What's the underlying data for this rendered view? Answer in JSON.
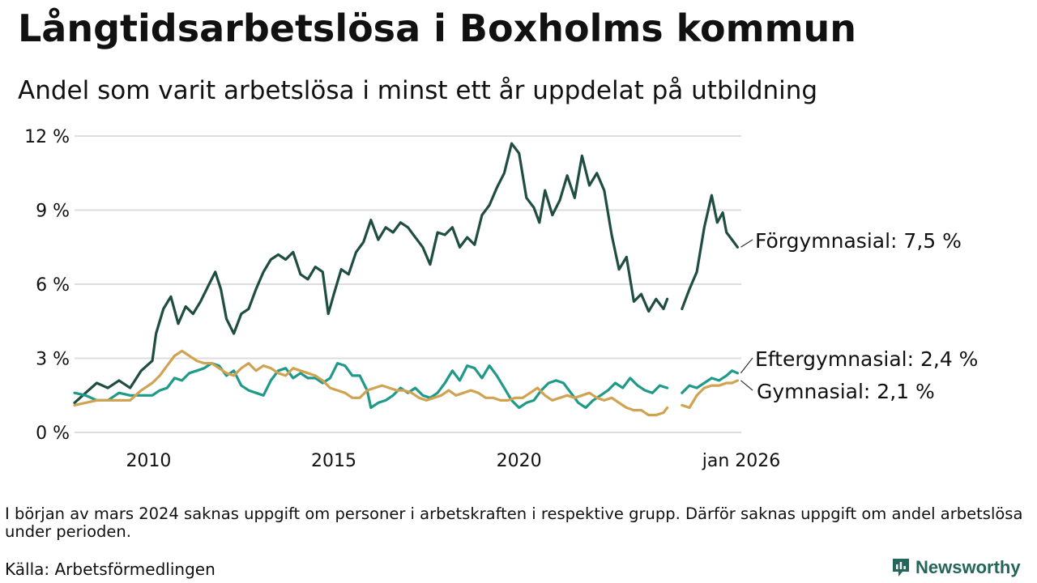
{
  "title": "Långtidsarbetslösa i Boxholms kommun",
  "subtitle": "Andel som varit arbetslösa i minst ett år uppdelat på utbildning",
  "note": "I början av mars 2024 saknas uppgift om personer i arbetskraften i respektive grupp. Därför saknas uppgift om andel arbetslösa under perioden.",
  "source": "Källa: Arbetsförmedlingen",
  "brand": "Newsworthy",
  "colors": {
    "forgymnasial": "#1f4d42",
    "eftergymnasial": "#1f9a8a",
    "gymnasial": "#d0a352",
    "grid": "#dddddd",
    "brand": "#24665a"
  },
  "chart_data": {
    "type": "line",
    "title": "Långtidsarbetslösa i Boxholms kommun",
    "xlabel": "",
    "ylabel": "",
    "x_unit": "year",
    "xlim": [
      2008.0,
      2026.0
    ],
    "ylim": [
      0,
      12
    ],
    "y_ticks": [
      0,
      3,
      6,
      9,
      12
    ],
    "y_tick_labels": [
      "0 %",
      "3 %",
      "6 %",
      "9 %",
      "12 %"
    ],
    "x_ticks": [
      2010,
      2015,
      2020,
      2026.0
    ],
    "x_tick_labels": [
      "2010",
      "2015",
      "2020",
      "jan 2026"
    ],
    "grid": true,
    "gap": [
      2024.15,
      2024.4
    ],
    "series": [
      {
        "name": "Förgymnasial",
        "label": "Förgymnasial: 7,5 %",
        "color": "#1f4d42",
        "points": [
          [
            2008.0,
            1.2
          ],
          [
            2008.3,
            1.6
          ],
          [
            2008.6,
            2.0
          ],
          [
            2008.9,
            1.8
          ],
          [
            2009.2,
            2.1
          ],
          [
            2009.5,
            1.8
          ],
          [
            2009.8,
            2.5
          ],
          [
            2010.1,
            2.9
          ],
          [
            2010.2,
            4.0
          ],
          [
            2010.4,
            5.0
          ],
          [
            2010.6,
            5.5
          ],
          [
            2010.8,
            4.4
          ],
          [
            2011.0,
            5.1
          ],
          [
            2011.2,
            4.8
          ],
          [
            2011.4,
            5.3
          ],
          [
            2011.6,
            5.9
          ],
          [
            2011.8,
            6.5
          ],
          [
            2011.95,
            5.8
          ],
          [
            2012.1,
            4.6
          ],
          [
            2012.3,
            4.0
          ],
          [
            2012.5,
            4.8
          ],
          [
            2012.7,
            5.0
          ],
          [
            2012.9,
            5.8
          ],
          [
            2013.1,
            6.5
          ],
          [
            2013.3,
            7.0
          ],
          [
            2013.5,
            7.2
          ],
          [
            2013.7,
            7.0
          ],
          [
            2013.9,
            7.3
          ],
          [
            2014.1,
            6.4
          ],
          [
            2014.3,
            6.2
          ],
          [
            2014.5,
            6.7
          ],
          [
            2014.7,
            6.5
          ],
          [
            2014.85,
            4.8
          ],
          [
            2015.0,
            5.6
          ],
          [
            2015.2,
            6.6
          ],
          [
            2015.4,
            6.4
          ],
          [
            2015.6,
            7.3
          ],
          [
            2015.8,
            7.7
          ],
          [
            2016.0,
            8.6
          ],
          [
            2016.2,
            7.8
          ],
          [
            2016.4,
            8.3
          ],
          [
            2016.6,
            8.1
          ],
          [
            2016.8,
            8.5
          ],
          [
            2017.0,
            8.3
          ],
          [
            2017.2,
            7.9
          ],
          [
            2017.4,
            7.5
          ],
          [
            2017.6,
            6.8
          ],
          [
            2017.8,
            8.1
          ],
          [
            2018.0,
            8.0
          ],
          [
            2018.2,
            8.3
          ],
          [
            2018.4,
            7.5
          ],
          [
            2018.6,
            7.9
          ],
          [
            2018.8,
            7.6
          ],
          [
            2019.0,
            8.8
          ],
          [
            2019.2,
            9.2
          ],
          [
            2019.4,
            9.9
          ],
          [
            2019.6,
            10.5
          ],
          [
            2019.8,
            11.7
          ],
          [
            2020.0,
            11.3
          ],
          [
            2020.2,
            9.5
          ],
          [
            2020.4,
            9.1
          ],
          [
            2020.55,
            8.5
          ],
          [
            2020.7,
            9.8
          ],
          [
            2020.9,
            8.8
          ],
          [
            2021.1,
            9.4
          ],
          [
            2021.3,
            10.4
          ],
          [
            2021.5,
            9.5
          ],
          [
            2021.7,
            11.2
          ],
          [
            2021.9,
            10.0
          ],
          [
            2022.1,
            10.5
          ],
          [
            2022.3,
            9.8
          ],
          [
            2022.5,
            8.0
          ],
          [
            2022.7,
            6.6
          ],
          [
            2022.9,
            7.1
          ],
          [
            2023.1,
            5.3
          ],
          [
            2023.3,
            5.6
          ],
          [
            2023.5,
            4.9
          ],
          [
            2023.7,
            5.4
          ],
          [
            2023.9,
            5.0
          ],
          [
            2024.0,
            5.4
          ],
          [
            2024.4,
            5.0
          ],
          [
            2024.6,
            5.8
          ],
          [
            2024.8,
            6.5
          ],
          [
            2025.0,
            8.3
          ],
          [
            2025.2,
            9.6
          ],
          [
            2025.35,
            8.5
          ],
          [
            2025.5,
            8.9
          ],
          [
            2025.6,
            8.1
          ],
          [
            2025.75,
            7.8
          ],
          [
            2025.9,
            7.5
          ]
        ]
      },
      {
        "name": "Eftergymnasial",
        "label": "Eftergymnasial: 2,4 %",
        "color": "#1f9a8a",
        "points": [
          [
            2008.0,
            1.6
          ],
          [
            2008.3,
            1.5
          ],
          [
            2008.6,
            1.3
          ],
          [
            2008.9,
            1.3
          ],
          [
            2009.2,
            1.6
          ],
          [
            2009.5,
            1.5
          ],
          [
            2009.8,
            1.5
          ],
          [
            2010.1,
            1.5
          ],
          [
            2010.3,
            1.7
          ],
          [
            2010.5,
            1.8
          ],
          [
            2010.7,
            2.2
          ],
          [
            2010.9,
            2.1
          ],
          [
            2011.1,
            2.4
          ],
          [
            2011.3,
            2.5
          ],
          [
            2011.5,
            2.6
          ],
          [
            2011.7,
            2.8
          ],
          [
            2011.9,
            2.7
          ],
          [
            2012.1,
            2.3
          ],
          [
            2012.3,
            2.5
          ],
          [
            2012.5,
            1.9
          ],
          [
            2012.7,
            1.7
          ],
          [
            2012.9,
            1.6
          ],
          [
            2013.1,
            1.5
          ],
          [
            2013.3,
            2.1
          ],
          [
            2013.5,
            2.5
          ],
          [
            2013.7,
            2.6
          ],
          [
            2013.9,
            2.2
          ],
          [
            2014.1,
            2.4
          ],
          [
            2014.3,
            2.2
          ],
          [
            2014.5,
            2.2
          ],
          [
            2014.7,
            2.0
          ],
          [
            2014.9,
            2.2
          ],
          [
            2015.1,
            2.8
          ],
          [
            2015.3,
            2.7
          ],
          [
            2015.5,
            2.3
          ],
          [
            2015.7,
            2.3
          ],
          [
            2015.9,
            1.7
          ],
          [
            2016.0,
            1.0
          ],
          [
            2016.2,
            1.2
          ],
          [
            2016.4,
            1.3
          ],
          [
            2016.6,
            1.5
          ],
          [
            2016.8,
            1.8
          ],
          [
            2017.0,
            1.6
          ],
          [
            2017.2,
            1.8
          ],
          [
            2017.4,
            1.5
          ],
          [
            2017.6,
            1.4
          ],
          [
            2017.8,
            1.6
          ],
          [
            2018.0,
            2.0
          ],
          [
            2018.2,
            2.5
          ],
          [
            2018.4,
            2.1
          ],
          [
            2018.6,
            2.7
          ],
          [
            2018.8,
            2.6
          ],
          [
            2019.0,
            2.2
          ],
          [
            2019.2,
            2.7
          ],
          [
            2019.4,
            2.3
          ],
          [
            2019.6,
            1.8
          ],
          [
            2019.8,
            1.3
          ],
          [
            2020.0,
            1.0
          ],
          [
            2020.2,
            1.2
          ],
          [
            2020.4,
            1.3
          ],
          [
            2020.6,
            1.7
          ],
          [
            2020.8,
            2.0
          ],
          [
            2021.0,
            2.1
          ],
          [
            2021.2,
            2.0
          ],
          [
            2021.4,
            1.6
          ],
          [
            2021.6,
            1.2
          ],
          [
            2021.8,
            1.0
          ],
          [
            2022.0,
            1.3
          ],
          [
            2022.2,
            1.5
          ],
          [
            2022.4,
            1.7
          ],
          [
            2022.6,
            2.0
          ],
          [
            2022.8,
            1.8
          ],
          [
            2023.0,
            2.2
          ],
          [
            2023.2,
            1.9
          ],
          [
            2023.4,
            1.7
          ],
          [
            2023.6,
            1.6
          ],
          [
            2023.8,
            1.9
          ],
          [
            2024.0,
            1.8
          ],
          [
            2024.4,
            1.6
          ],
          [
            2024.6,
            1.9
          ],
          [
            2024.8,
            1.8
          ],
          [
            2025.0,
            2.0
          ],
          [
            2025.2,
            2.2
          ],
          [
            2025.4,
            2.1
          ],
          [
            2025.6,
            2.3
          ],
          [
            2025.75,
            2.5
          ],
          [
            2025.9,
            2.4
          ]
        ]
      },
      {
        "name": "Gymnasial",
        "label": "Gymnasial: 2,1 %",
        "color": "#d0a352",
        "points": [
          [
            2008.0,
            1.1
          ],
          [
            2008.3,
            1.2
          ],
          [
            2008.6,
            1.3
          ],
          [
            2008.9,
            1.3
          ],
          [
            2009.2,
            1.3
          ],
          [
            2009.5,
            1.3
          ],
          [
            2009.8,
            1.7
          ],
          [
            2010.1,
            2.0
          ],
          [
            2010.3,
            2.3
          ],
          [
            2010.5,
            2.7
          ],
          [
            2010.7,
            3.1
          ],
          [
            2010.9,
            3.3
          ],
          [
            2011.1,
            3.1
          ],
          [
            2011.3,
            2.9
          ],
          [
            2011.5,
            2.8
          ],
          [
            2011.7,
            2.8
          ],
          [
            2011.9,
            2.6
          ],
          [
            2012.1,
            2.4
          ],
          [
            2012.3,
            2.3
          ],
          [
            2012.5,
            2.6
          ],
          [
            2012.7,
            2.8
          ],
          [
            2012.9,
            2.5
          ],
          [
            2013.1,
            2.7
          ],
          [
            2013.3,
            2.6
          ],
          [
            2013.5,
            2.4
          ],
          [
            2013.7,
            2.3
          ],
          [
            2013.9,
            2.6
          ],
          [
            2014.1,
            2.5
          ],
          [
            2014.3,
            2.4
          ],
          [
            2014.5,
            2.3
          ],
          [
            2014.7,
            2.1
          ],
          [
            2014.9,
            1.8
          ],
          [
            2015.1,
            1.7
          ],
          [
            2015.3,
            1.6
          ],
          [
            2015.5,
            1.4
          ],
          [
            2015.7,
            1.4
          ],
          [
            2015.9,
            1.7
          ],
          [
            2016.1,
            1.8
          ],
          [
            2016.3,
            1.9
          ],
          [
            2016.5,
            1.8
          ],
          [
            2016.7,
            1.7
          ],
          [
            2016.9,
            1.7
          ],
          [
            2017.1,
            1.6
          ],
          [
            2017.3,
            1.4
          ],
          [
            2017.5,
            1.3
          ],
          [
            2017.7,
            1.4
          ],
          [
            2017.9,
            1.5
          ],
          [
            2018.1,
            1.7
          ],
          [
            2018.3,
            1.5
          ],
          [
            2018.5,
            1.6
          ],
          [
            2018.7,
            1.7
          ],
          [
            2018.9,
            1.6
          ],
          [
            2019.1,
            1.4
          ],
          [
            2019.3,
            1.4
          ],
          [
            2019.5,
            1.3
          ],
          [
            2019.7,
            1.3
          ],
          [
            2019.9,
            1.4
          ],
          [
            2020.1,
            1.4
          ],
          [
            2020.3,
            1.6
          ],
          [
            2020.5,
            1.8
          ],
          [
            2020.7,
            1.5
          ],
          [
            2020.9,
            1.3
          ],
          [
            2021.1,
            1.4
          ],
          [
            2021.3,
            1.5
          ],
          [
            2021.5,
            1.4
          ],
          [
            2021.7,
            1.5
          ],
          [
            2021.9,
            1.6
          ],
          [
            2022.1,
            1.4
          ],
          [
            2022.3,
            1.3
          ],
          [
            2022.5,
            1.4
          ],
          [
            2022.7,
            1.2
          ],
          [
            2022.9,
            1.0
          ],
          [
            2023.1,
            0.9
          ],
          [
            2023.3,
            0.9
          ],
          [
            2023.5,
            0.7
          ],
          [
            2023.7,
            0.7
          ],
          [
            2023.9,
            0.8
          ],
          [
            2024.0,
            1.0
          ],
          [
            2024.4,
            1.1
          ],
          [
            2024.6,
            1.0
          ],
          [
            2024.8,
            1.5
          ],
          [
            2025.0,
            1.8
          ],
          [
            2025.2,
            1.9
          ],
          [
            2025.4,
            1.9
          ],
          [
            2025.6,
            2.0
          ],
          [
            2025.75,
            2.0
          ],
          [
            2025.9,
            2.1
          ]
        ]
      }
    ]
  }
}
